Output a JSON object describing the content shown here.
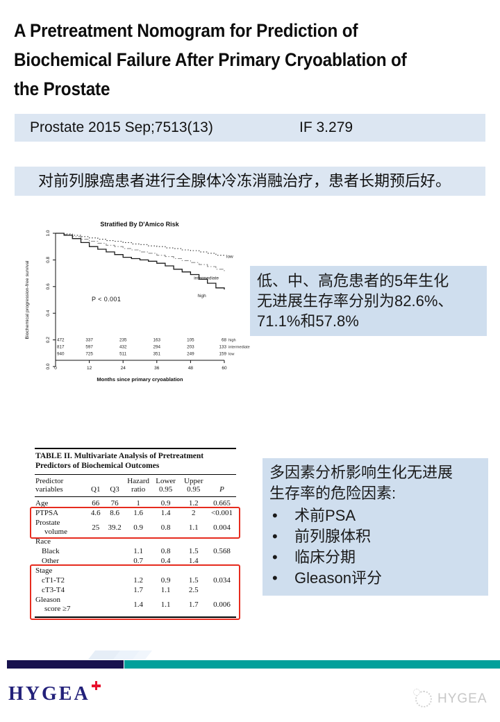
{
  "slide": {
    "title": "A Pretreatment Nomogram for Prediction of\nBiochemical Failure After Primary Cryoablation of\nthe Prostate",
    "citation": {
      "journal": "Prostate 2015 Sep;7513(13)",
      "impact_factor": "IF 3.279"
    },
    "summary_banner": "对前列腺癌患者进行全腺体冷冻消融治疗，患者长期预后好。",
    "callout_survival": "低、中、高危患者的5年生化\n无进展生存率分别为82.6%、\n71.1%和57.8%",
    "callout_multivariate": {
      "intro": "多因素分析影响生化无进展\n生存率的危险因素:",
      "bullet_glyph": "•",
      "bullets": [
        "术前PSA",
        "前列腺体积",
        "临床分期",
        "Gleason评分"
      ]
    },
    "footer": {
      "logo_text": "HYGEA",
      "logo_cross_icon": "red-cross-icon",
      "watermark_icon": "globe-icon",
      "watermark_text": "HYGEA"
    },
    "colors": {
      "banner_blue": "#dce6f2",
      "callout_blue": "#cfdeee",
      "highlight_red": "#e62b1e",
      "footer_navy": "#18124e",
      "footer_teal": "#01a09b",
      "logo_navy": "#23217a"
    }
  },
  "chart_data": {
    "type": "line",
    "subtype": "kaplan-meier-step",
    "title": "Stratified By D'Amico Risk",
    "xlabel": "Months since primary cryoablation",
    "ylabel": "Biochemical progression-free survival",
    "xlim": [
      0,
      60
    ],
    "ylim": [
      0.0,
      1.0
    ],
    "x_ticks": [
      0,
      12,
      24,
      36,
      48,
      60
    ],
    "y_ticks": [
      0.0,
      0.2,
      0.4,
      0.6,
      0.8,
      1.0
    ],
    "annotation": "P < 0.001",
    "grid": false,
    "legend_position": "curve-end-labels",
    "x": [
      0,
      3,
      6,
      9,
      12,
      15,
      18,
      21,
      24,
      27,
      30,
      33,
      36,
      39,
      42,
      45,
      48,
      51,
      54,
      57,
      60
    ],
    "series": [
      {
        "name": "low",
        "style": "dotted",
        "y": [
          1.0,
          0.995,
          0.985,
          0.975,
          0.965,
          0.955,
          0.945,
          0.94,
          0.93,
          0.92,
          0.915,
          0.905,
          0.9,
          0.89,
          0.885,
          0.875,
          0.87,
          0.86,
          0.85,
          0.835,
          0.826
        ]
      },
      {
        "name": "intermediate",
        "style": "dashdot",
        "y": [
          1.0,
          0.99,
          0.975,
          0.955,
          0.94,
          0.925,
          0.91,
          0.9,
          0.885,
          0.875,
          0.86,
          0.85,
          0.835,
          0.825,
          0.81,
          0.795,
          0.78,
          0.765,
          0.75,
          0.73,
          0.711
        ]
      },
      {
        "name": "high",
        "style": "solid",
        "y": [
          1.0,
          0.985,
          0.96,
          0.93,
          0.9,
          0.88,
          0.86,
          0.84,
          0.82,
          0.81,
          0.8,
          0.79,
          0.775,
          0.755,
          0.73,
          0.71,
          0.69,
          0.655,
          0.625,
          0.59,
          0.578
        ]
      }
    ],
    "numbers_at_risk": {
      "time": [
        0,
        12,
        24,
        36,
        48,
        60
      ],
      "rows": [
        {
          "name": "high",
          "values": [
            472,
            337,
            235,
            163,
            105,
            68
          ]
        },
        {
          "name": "intermediate",
          "values": [
            817,
            597,
            432,
            294,
            203,
            133
          ]
        },
        {
          "name": "low",
          "values": [
            940,
            725,
            511,
            351,
            249,
            159
          ]
        }
      ]
    }
  },
  "paper_table": {
    "caption": "TABLE II. Multivariate Analysis of Pretreatment Predictors of Biochemical Outcomes",
    "headers": [
      "Predictor\nvariables",
      "Q1",
      "Q3",
      "Hazard\nratio",
      "Lower\n0.95",
      "Upper\n0.95",
      "P"
    ],
    "rows": [
      {
        "label": "Age",
        "indent": 0,
        "group": 0,
        "cells": [
          "66",
          "76",
          "1",
          "0.9",
          "1.2",
          "0.665"
        ]
      },
      {
        "label": "PTPSA",
        "indent": 0,
        "group": 1,
        "cells": [
          "4.6",
          "8.6",
          "1.6",
          "1.4",
          "2",
          "<0.001"
        ]
      },
      {
        "label": "Prostate",
        "label2": "volume",
        "indent": 0,
        "group": 1,
        "cells": [
          "25",
          "39.2",
          "0.9",
          "0.8",
          "1.1",
          "0.004"
        ]
      },
      {
        "label": "Race",
        "indent": 0,
        "group": 0,
        "cells": [
          "",
          "",
          "",
          "",
          "",
          ""
        ]
      },
      {
        "label": "Black",
        "indent": 1,
        "group": 0,
        "cells": [
          "",
          "",
          "1.1",
          "0.8",
          "1.5",
          "0.568"
        ]
      },
      {
        "label": "Other",
        "indent": 1,
        "group": 0,
        "cells": [
          "",
          "",
          "0.7",
          "0.4",
          "1.4",
          ""
        ]
      },
      {
        "label": "Stage",
        "indent": 0,
        "group": 2,
        "cells": [
          "",
          "",
          "",
          "",
          "",
          ""
        ]
      },
      {
        "label": "cT1-T2",
        "indent": 1,
        "group": 2,
        "cells": [
          "",
          "",
          "1.2",
          "0.9",
          "1.5",
          "0.034"
        ]
      },
      {
        "label": "cT3-T4",
        "indent": 1,
        "group": 2,
        "cells": [
          "",
          "",
          "1.7",
          "1.1",
          "2.5",
          ""
        ]
      },
      {
        "label": "Gleason",
        "label2": "score ≥7",
        "indent": 0,
        "group": 2,
        "cells": [
          "",
          "",
          "1.4",
          "1.1",
          "1.7",
          "0.006"
        ]
      }
    ]
  }
}
